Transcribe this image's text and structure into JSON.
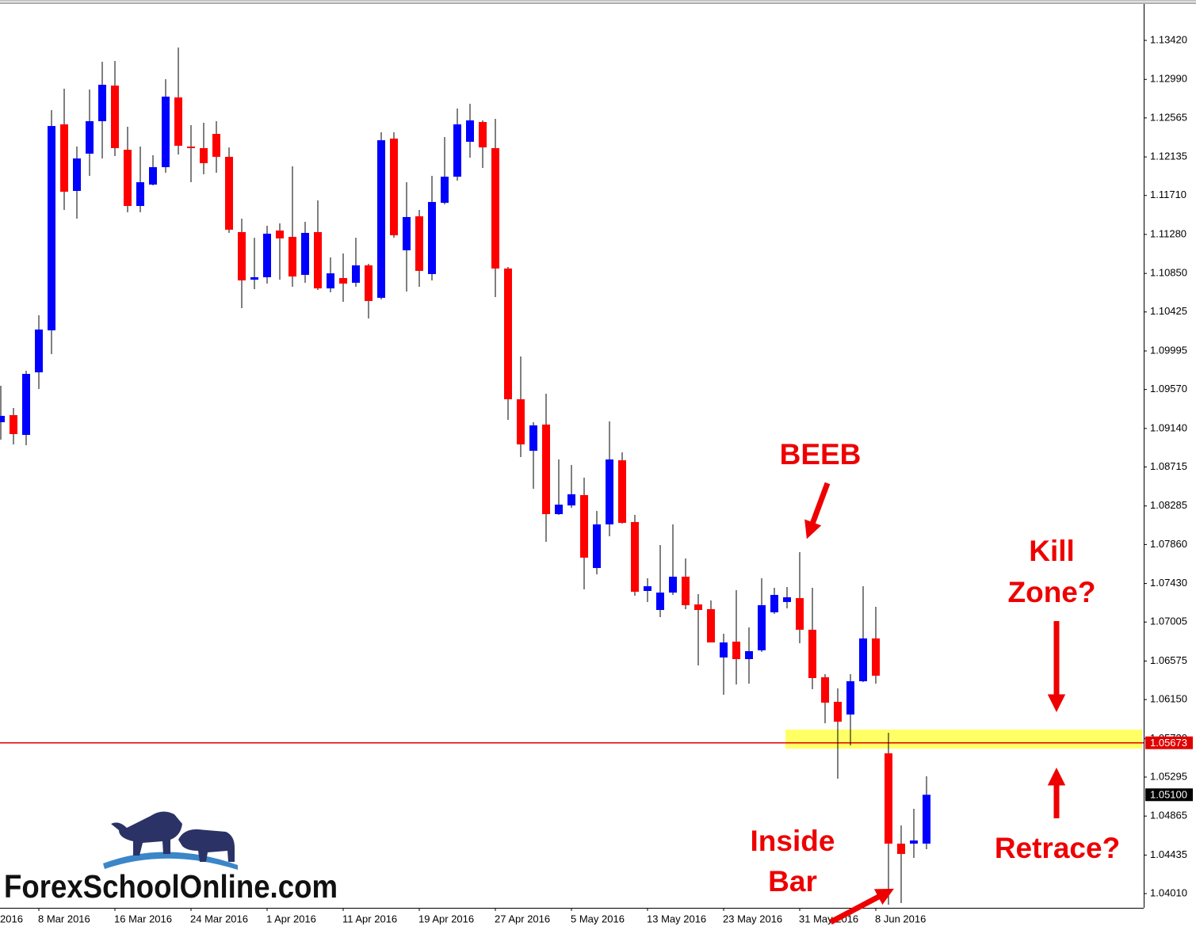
{
  "chart_data": {
    "type": "candlestick",
    "open": [
      1.09209,
      1.09287,
      1.09069,
      1.09759,
      1.10222,
      1.12494,
      1.1176,
      1.12171,
      1.12529,
      1.12922,
      1.12214,
      1.11594,
      1.1183,
      1.12022,
      1.12791,
      1.12249,
      1.12232,
      1.12389,
      1.12136,
      1.11306,
      1.10781,
      1.10808,
      1.11323,
      1.11253,
      1.10834,
      1.11306,
      1.10685,
      1.10799,
      1.10747,
      1.10939,
      1.10581,
      1.12337,
      1.11105,
      1.1148,
      1.10843,
      1.11629,
      1.11917,
      1.12302,
      1.1252,
      1.12232,
      1.10904,
      1.09462,
      1.08894,
      1.09183,
      1.08195,
      1.08291,
      1.08405,
      1.07601,
      1.08082,
      1.08789,
      1.08108,
      1.07348,
      1.07138,
      1.0733,
      1.07505,
      1.07199,
      1.07147,
      1.06614,
      1.06789,
      1.06596,
      1.06693,
      1.07112,
      1.07226,
      1.07269,
      1.0692,
      1.06396,
      1.06125,
      1.05985,
      1.06352,
      1.06824,
      1.05557,
      1.04561,
      1.04561,
      1.04561
    ],
    "high": [
      1.09611,
      1.09366,
      1.09777,
      1.10388,
      1.12651,
      1.12887,
      1.12249,
      1.12878,
      1.13184,
      1.13193,
      1.12468,
      1.12249,
      1.12153,
      1.12992,
      1.13341,
      1.12485,
      1.12511,
      1.12529,
      1.1224,
      1.11454,
      1.11244,
      1.11376,
      1.11402,
      1.12031,
      1.11419,
      1.11655,
      1.11026,
      1.1107,
      1.11244,
      1.10956,
      1.12407,
      1.12407,
      1.11856,
      1.1155,
      1.11926,
      1.12354,
      1.12669,
      1.12721,
      1.12538,
      1.12555,
      1.10921,
      1.09934,
      1.09209,
      1.09523,
      1.08798,
      1.08737,
      1.08597,
      1.0823,
      1.09218,
      1.08877,
      1.08187,
      1.07488,
      1.07855,
      1.08082,
      1.07706,
      1.07313,
      1.07243,
      1.06876,
      1.07357,
      1.06946,
      1.07488,
      1.07383,
      1.07392,
      1.07776,
      1.07383,
      1.0643,
      1.06273,
      1.0643,
      1.074,
      1.07173,
      1.05784,
      1.04762,
      1.04945,
      1.05303
    ],
    "low": [
      1.09017,
      1.08964,
      1.08955,
      1.09576,
      1.0996,
      1.1155,
      1.11454,
      1.11926,
      1.12118,
      1.12144,
      1.11524,
      1.11524,
      1.11821,
      1.11961,
      1.12162,
      1.11856,
      1.11943,
      1.11961,
      1.11297,
      1.10467,
      1.10677,
      1.10738,
      1.10781,
      1.10703,
      1.10747,
      1.10668,
      1.10642,
      1.10537,
      1.10703,
      1.10353,
      1.10563,
      1.11244,
      1.1065,
      1.10703,
      1.10773,
      1.11611,
      1.11874,
      1.12127,
      1.12013,
      1.10589,
      1.09235,
      1.08824,
      1.08475,
      1.0789,
      1.08187,
      1.08265,
      1.07365,
      1.07531,
      1.07951,
      1.0809,
      1.07295,
      1.07226,
      1.0706,
      1.07304,
      1.07147,
      1.06527,
      1.0678,
      1.06203,
      1.06317,
      1.06326,
      1.06675,
      1.07094,
      1.07156,
      1.06771,
      1.06264,
      1.05889,
      1.05277,
      1.05644,
      1.06343,
      1.06326,
      1.03888,
      1.03905,
      1.04403,
      1.045
    ],
    "close": [
      1.09279,
      1.09078,
      1.09742,
      1.10231,
      1.12476,
      1.11751,
      1.12118,
      1.12529,
      1.12931,
      1.12232,
      1.11594,
      1.11856,
      1.12022,
      1.128,
      1.12258,
      1.12232,
      1.12066,
      1.12136,
      1.11332,
      1.10773,
      1.10808,
      1.11288,
      1.11236,
      1.10816,
      1.11297,
      1.10685,
      1.10851,
      1.10738,
      1.10939,
      1.10546,
      1.12319,
      1.11271,
      1.11472,
      1.10878,
      1.11638,
      1.11917,
      1.12494,
      1.12538,
      1.1224,
      1.10904,
      1.09462,
      1.08964,
      1.09174,
      1.08195,
      1.083,
      1.08414,
      1.07715,
      1.08082,
      1.08798,
      1.08099,
      1.07339,
      1.074,
      1.0733,
      1.07505,
      1.07191,
      1.07138,
      1.0678,
      1.0678,
      1.06596,
      1.06684,
      1.07191,
      1.07304,
      1.07278,
      1.0692,
      1.06387,
      1.06116,
      1.05906,
      1.06352,
      1.06824,
      1.06413,
      1.04561,
      1.04447,
      1.04596,
      1.051
    ],
    "up_color": "#0000ff",
    "down_color": "#ff0000",
    "ylim": [
      1.03853,
      1.13822
    ],
    "yticks": [
      {
        "value": 1.1342,
        "label": "1.13420"
      },
      {
        "value": 1.1299,
        "label": "1.12990"
      },
      {
        "value": 1.12565,
        "label": "1.12565"
      },
      {
        "value": 1.12135,
        "label": "1.12135"
      },
      {
        "value": 1.1171,
        "label": "1.11710"
      },
      {
        "value": 1.1128,
        "label": "1.11280"
      },
      {
        "value": 1.1085,
        "label": "1.10850"
      },
      {
        "value": 1.10425,
        "label": "1.10425"
      },
      {
        "value": 1.09995,
        "label": "1.09995"
      },
      {
        "value": 1.0957,
        "label": "1.09570"
      },
      {
        "value": 1.0914,
        "label": "1.09140"
      },
      {
        "value": 1.08715,
        "label": "1.08715"
      },
      {
        "value": 1.08285,
        "label": "1.08285"
      },
      {
        "value": 1.0786,
        "label": "1.07860"
      },
      {
        "value": 1.0743,
        "label": "1.07430"
      },
      {
        "value": 1.07005,
        "label": "1.07005"
      },
      {
        "value": 1.06575,
        "label": "1.06575"
      },
      {
        "value": 1.0615,
        "label": "1.06150"
      },
      {
        "value": 1.0572,
        "label": "1.05720"
      },
      {
        "value": 1.05295,
        "label": "1.05295"
      },
      {
        "value": 1.04865,
        "label": "1.04865"
      },
      {
        "value": 1.04435,
        "label": "1.04435"
      },
      {
        "value": 1.0401,
        "label": "1.04010"
      }
    ],
    "xlim": [
      -0.0625,
      90.125
    ],
    "xticks": [
      {
        "value": -3,
        "label": "2016"
      },
      {
        "value": 3,
        "label": "8 Mar 2016"
      },
      {
        "value": 9,
        "label": "16 Mar 2016"
      },
      {
        "value": 15,
        "label": "24 Mar 2016"
      },
      {
        "value": 21,
        "label": "1 Apr 2016"
      },
      {
        "value": 27,
        "label": "11 Apr 2016"
      },
      {
        "value": 33,
        "label": "19 Apr 2016"
      },
      {
        "value": 39,
        "label": "27 Apr 2016"
      },
      {
        "value": 45,
        "label": "5 May 2016"
      },
      {
        "value": 51,
        "label": "13 May 2016"
      },
      {
        "value": 57,
        "label": "23 May 2016"
      },
      {
        "value": 63,
        "label": "31 May 2016"
      },
      {
        "value": 69,
        "label": "8 Jun 2016"
      }
    ],
    "price_lines": [
      {
        "value": 1.05673,
        "label": "1.05673",
        "color": "#e00000"
      },
      {
        "value": 1.051,
        "label": "1.05100",
        "color": "#000000"
      }
    ],
    "zone": {
      "low": 1.05609,
      "high": 1.05819,
      "color": "#ffff66"
    },
    "annotations": {
      "beeb": "BEEB",
      "kill_zone": [
        "Kill",
        "Zone?"
      ],
      "inside_bar": [
        "Inside",
        "Bar"
      ],
      "retrace": "Retrace?"
    }
  },
  "logo": {
    "text": "ForexSchoolOnline.com"
  }
}
